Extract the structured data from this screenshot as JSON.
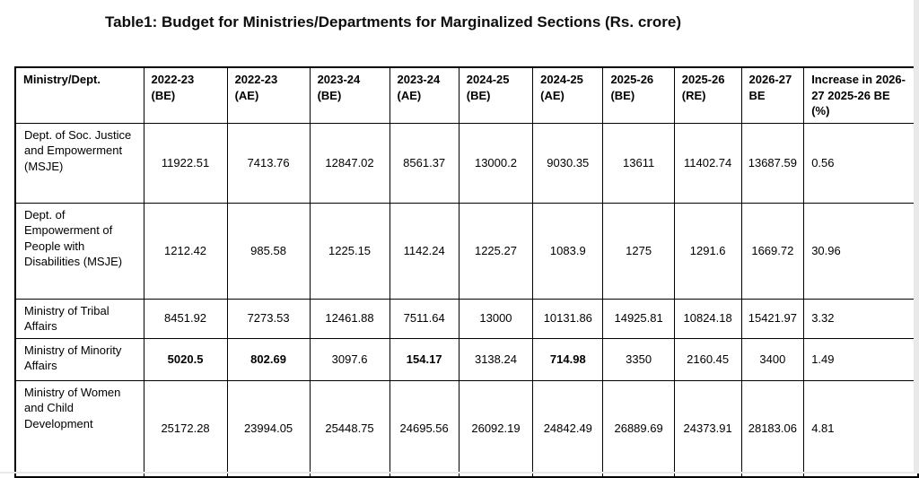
{
  "title": "Table1: Budget for Ministries/Departments for Marginalized Sections (Rs. crore)",
  "table": {
    "columns": [
      "Ministry/Dept.",
      "2022-23 (BE)",
      "2022-23 (AE)",
      "2023-24 (BE)",
      "2023-24 (AE)",
      "2024-25 (BE)",
      "2024-25 (AE)",
      "2025-26 (BE)",
      "2025-26 (RE)",
      "2026-27 BE",
      "Increase in 2026-27 2025-26 BE (%)"
    ],
    "rows": [
      {
        "ministry": "Dept. of Soc. Justice and Empowerment (MSJE)",
        "values": [
          "11922.51",
          "7413.76",
          "12847.02",
          "8561.37",
          "13000.2",
          "9030.35",
          "13611",
          "11402.74",
          "13687.59",
          "0.56"
        ],
        "bold": [
          false,
          false,
          false,
          false,
          false,
          false,
          false,
          false,
          false,
          false
        ]
      },
      {
        "ministry": "Dept. of Empowerment of People with Disabilities (MSJE)",
        "values": [
          "1212.42",
          "985.58",
          "1225.15",
          "1142.24",
          "1225.27",
          "1083.9",
          "1275",
          "1291.6",
          "1669.72",
          "30.96"
        ],
        "bold": [
          false,
          false,
          false,
          false,
          false,
          false,
          false,
          false,
          false,
          false
        ]
      },
      {
        "ministry": "Ministry of Tribal Affairs",
        "values": [
          "8451.92",
          "7273.53",
          "12461.88",
          "7511.64",
          "13000",
          "10131.86",
          "14925.81",
          "10824.18",
          "15421.97",
          "3.32"
        ],
        "bold": [
          false,
          false,
          false,
          false,
          false,
          false,
          false,
          false,
          false,
          false
        ]
      },
      {
        "ministry": "Ministry of Minority Affairs",
        "values": [
          "5020.5",
          "802.69",
          "3097.6",
          "154.17",
          "3138.24",
          "714.98",
          "3350",
          "2160.45",
          "3400",
          "1.49"
        ],
        "bold": [
          true,
          true,
          false,
          true,
          false,
          true,
          false,
          false,
          false,
          false
        ]
      },
      {
        "ministry": "Ministry of Women and Child Development",
        "values": [
          "25172.28",
          "23994.05",
          "25448.75",
          "24695.56",
          "26092.19",
          "24842.49",
          "26889.69",
          "24373.91",
          "28183.06",
          "4.81"
        ],
        "bold": [
          false,
          false,
          false,
          false,
          false,
          false,
          false,
          false,
          false,
          false
        ]
      }
    ]
  }
}
